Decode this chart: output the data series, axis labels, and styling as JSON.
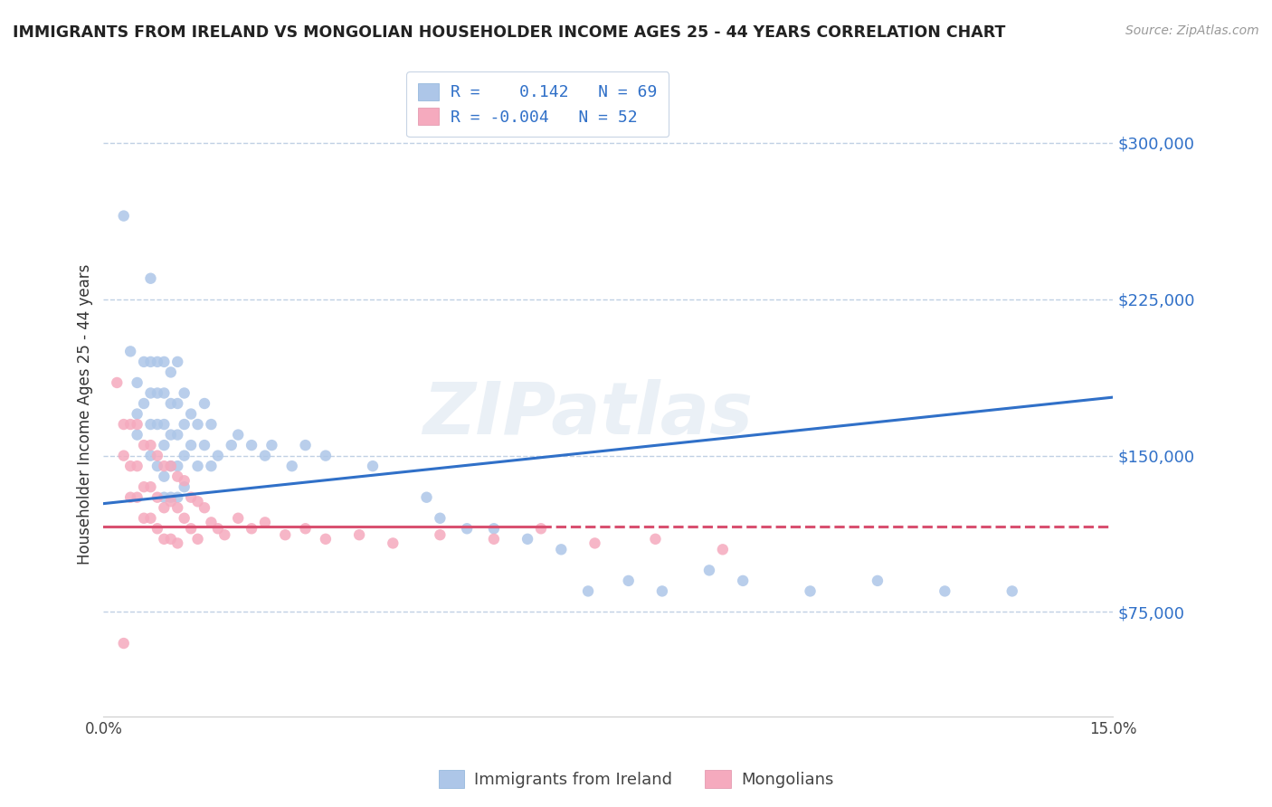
{
  "title": "IMMIGRANTS FROM IRELAND VS MONGOLIAN HOUSEHOLDER INCOME AGES 25 - 44 YEARS CORRELATION CHART",
  "source": "Source: ZipAtlas.com",
  "ylabel": "Householder Income Ages 25 - 44 years",
  "xlim": [
    0.0,
    0.15
  ],
  "ylim": [
    25000,
    315000
  ],
  "yticks": [
    75000,
    150000,
    225000,
    300000
  ],
  "ytick_labels": [
    "$75,000",
    "$150,000",
    "$225,000",
    "$300,000"
  ],
  "xticks": [
    0.0,
    0.03,
    0.06,
    0.09,
    0.12,
    0.15
  ],
  "xtick_labels": [
    "0.0%",
    "",
    "",
    "",
    "",
    "15.0%"
  ],
  "ireland_R": 0.142,
  "ireland_N": 69,
  "mongolia_R": -0.004,
  "mongolia_N": 52,
  "ireland_color": "#adc6e8",
  "mongolia_color": "#f5aabe",
  "ireland_line_color": "#3070c8",
  "mongolia_line_color": "#d85070",
  "background_color": "#ffffff",
  "grid_color": "#c0d0e4",
  "watermark": "ZIPatlas",
  "ireland_line_x0": 0.0,
  "ireland_line_y0": 127000,
  "ireland_line_x1": 0.15,
  "ireland_line_y1": 178000,
  "mongolia_line_x0": 0.0,
  "mongolia_line_y0": 116000,
  "mongolia_line_x1": 0.065,
  "mongolia_line_y1": 116000,
  "ireland_scatter_x": [
    0.003,
    0.004,
    0.005,
    0.005,
    0.005,
    0.006,
    0.006,
    0.007,
    0.007,
    0.007,
    0.007,
    0.008,
    0.008,
    0.008,
    0.008,
    0.009,
    0.009,
    0.009,
    0.009,
    0.009,
    0.009,
    0.01,
    0.01,
    0.01,
    0.01,
    0.01,
    0.011,
    0.011,
    0.011,
    0.011,
    0.011,
    0.012,
    0.012,
    0.012,
    0.012,
    0.013,
    0.013,
    0.014,
    0.014,
    0.015,
    0.015,
    0.016,
    0.016,
    0.017,
    0.019,
    0.02,
    0.022,
    0.024,
    0.025,
    0.028,
    0.03,
    0.033,
    0.04,
    0.048,
    0.05,
    0.054,
    0.058,
    0.063,
    0.068,
    0.072,
    0.078,
    0.083,
    0.09,
    0.095,
    0.105,
    0.115,
    0.125,
    0.007,
    0.135
  ],
  "ireland_scatter_y": [
    265000,
    200000,
    185000,
    170000,
    160000,
    195000,
    175000,
    195000,
    180000,
    165000,
    150000,
    195000,
    180000,
    165000,
    145000,
    195000,
    180000,
    165000,
    155000,
    140000,
    130000,
    190000,
    175000,
    160000,
    145000,
    130000,
    195000,
    175000,
    160000,
    145000,
    130000,
    180000,
    165000,
    150000,
    135000,
    170000,
    155000,
    165000,
    145000,
    175000,
    155000,
    165000,
    145000,
    150000,
    155000,
    160000,
    155000,
    150000,
    155000,
    145000,
    155000,
    150000,
    145000,
    130000,
    120000,
    115000,
    115000,
    110000,
    105000,
    85000,
    90000,
    85000,
    95000,
    90000,
    85000,
    90000,
    85000,
    235000,
    85000
  ],
  "mongolia_scatter_x": [
    0.002,
    0.003,
    0.003,
    0.004,
    0.004,
    0.004,
    0.005,
    0.005,
    0.005,
    0.006,
    0.006,
    0.006,
    0.007,
    0.007,
    0.007,
    0.008,
    0.008,
    0.008,
    0.009,
    0.009,
    0.009,
    0.01,
    0.01,
    0.01,
    0.011,
    0.011,
    0.011,
    0.012,
    0.012,
    0.013,
    0.013,
    0.014,
    0.014,
    0.015,
    0.016,
    0.017,
    0.018,
    0.02,
    0.022,
    0.024,
    0.027,
    0.03,
    0.033,
    0.038,
    0.043,
    0.05,
    0.058,
    0.065,
    0.073,
    0.082,
    0.092,
    0.003
  ],
  "mongolia_scatter_y": [
    185000,
    165000,
    150000,
    165000,
    145000,
    130000,
    165000,
    145000,
    130000,
    155000,
    135000,
    120000,
    155000,
    135000,
    120000,
    150000,
    130000,
    115000,
    145000,
    125000,
    110000,
    145000,
    128000,
    110000,
    140000,
    125000,
    108000,
    138000,
    120000,
    130000,
    115000,
    128000,
    110000,
    125000,
    118000,
    115000,
    112000,
    120000,
    115000,
    118000,
    112000,
    115000,
    110000,
    112000,
    108000,
    112000,
    110000,
    115000,
    108000,
    110000,
    105000,
    60000
  ]
}
